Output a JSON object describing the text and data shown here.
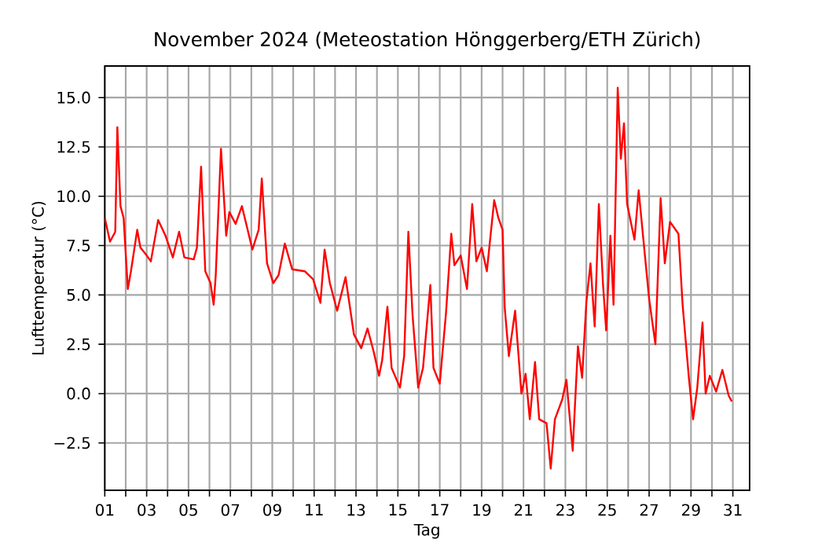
{
  "chart_data": {
    "type": "line",
    "title": "November 2024  (Meteostation Hönggerberg/ETH Zürich)",
    "xlabel": "Tag",
    "ylabel": "Lufttemperatur (°C)",
    "series": [
      {
        "color": "#ff0000",
        "x": [
          1.0,
          1.25,
          1.5,
          1.6,
          1.75,
          1.9,
          2.1,
          2.25,
          2.55,
          2.7,
          3.0,
          3.2,
          3.55,
          3.9,
          4.25,
          4.55,
          4.8,
          5.25,
          5.4,
          5.6,
          5.8,
          6.05,
          6.2,
          6.3,
          6.55,
          6.8,
          6.95,
          7.25,
          7.55,
          8.05,
          8.35,
          8.5,
          8.75,
          9.05,
          9.3,
          9.6,
          9.95,
          10.55,
          10.95,
          11.3,
          11.5,
          11.75,
          12.1,
          12.5,
          12.9,
          13.25,
          13.55,
          13.85,
          14.1,
          14.25,
          14.5,
          14.7,
          15.1,
          15.3,
          15.5,
          15.7,
          15.97,
          16.2,
          16.55,
          16.7,
          17.0,
          17.3,
          17.55,
          17.7,
          18.0,
          18.3,
          18.55,
          18.75,
          19.0,
          19.25,
          19.6,
          19.8,
          20.0,
          20.1,
          20.3,
          20.6,
          20.9,
          21.1,
          21.3,
          21.55,
          21.75,
          22.1,
          22.3,
          22.5,
          22.85,
          23.05,
          23.35,
          23.6,
          23.8,
          24.0,
          24.2,
          24.4,
          24.6,
          24.8,
          24.95,
          25.15,
          25.3,
          25.5,
          25.65,
          25.8,
          25.95,
          26.3,
          26.5,
          26.8,
          27.0,
          27.3,
          27.55,
          27.75,
          28.0,
          28.4,
          28.6,
          28.9,
          29.1,
          29.3,
          29.55,
          29.7,
          29.9,
          30.2,
          30.5,
          30.8,
          30.95
        ],
        "values": [
          8.9,
          7.7,
          8.2,
          13.5,
          9.5,
          8.9,
          5.3,
          6.2,
          8.3,
          7.4,
          7.0,
          6.7,
          8.8,
          8.0,
          6.9,
          8.2,
          6.9,
          6.8,
          7.4,
          11.5,
          6.2,
          5.6,
          4.5,
          6.0,
          12.4,
          8.0,
          9.2,
          8.6,
          9.5,
          7.3,
          8.3,
          10.9,
          6.6,
          5.6,
          6.0,
          7.6,
          6.3,
          6.2,
          5.8,
          4.6,
          7.3,
          5.6,
          4.2,
          5.9,
          3.0,
          2.3,
          3.3,
          2.1,
          0.9,
          1.7,
          4.4,
          1.3,
          0.3,
          1.9,
          8.2,
          4.0,
          0.3,
          1.3,
          5.5,
          1.3,
          0.5,
          4.1,
          8.1,
          6.5,
          7.0,
          5.3,
          9.6,
          6.7,
          7.4,
          6.2,
          9.8,
          8.9,
          8.3,
          4.4,
          1.9,
          4.2,
          0.0,
          1.0,
          -1.3,
          1.6,
          -1.3,
          -1.5,
          -3.8,
          -1.3,
          -0.3,
          0.7,
          -2.9,
          2.4,
          0.8,
          4.6,
          6.6,
          3.4,
          9.6,
          5.5,
          3.2,
          8.0,
          4.5,
          15.5,
          11.9,
          13.7,
          9.6,
          7.8,
          10.3,
          7.0,
          4.8,
          2.5,
          9.9,
          6.6,
          8.7,
          8.1,
          4.5,
          0.8,
          -1.3,
          0.3,
          3.6,
          0.0,
          0.9,
          0.1,
          1.2,
          -0.1,
          -0.4
        ]
      }
    ],
    "xlim": [
      1,
      31.8
    ],
    "xticks": [
      {
        "value": 1,
        "label": "01"
      },
      {
        "value": 2,
        "label": null
      },
      {
        "value": 3,
        "label": "03"
      },
      {
        "value": 4,
        "label": null
      },
      {
        "value": 5,
        "label": "05"
      },
      {
        "value": 6,
        "label": null
      },
      {
        "value": 7,
        "label": "07"
      },
      {
        "value": 8,
        "label": null
      },
      {
        "value": 9,
        "label": "09"
      },
      {
        "value": 10,
        "label": null
      },
      {
        "value": 11,
        "label": "11"
      },
      {
        "value": 12,
        "label": null
      },
      {
        "value": 13,
        "label": "13"
      },
      {
        "value": 14,
        "label": null
      },
      {
        "value": 15,
        "label": "15"
      },
      {
        "value": 16,
        "label": null
      },
      {
        "value": 17,
        "label": "17"
      },
      {
        "value": 18,
        "label": null
      },
      {
        "value": 19,
        "label": "19"
      },
      {
        "value": 20,
        "label": null
      },
      {
        "value": 21,
        "label": "21"
      },
      {
        "value": 22,
        "label": null
      },
      {
        "value": 23,
        "label": "23"
      },
      {
        "value": 24,
        "label": null
      },
      {
        "value": 25,
        "label": "25"
      },
      {
        "value": 26,
        "label": null
      },
      {
        "value": 27,
        "label": "27"
      },
      {
        "value": 28,
        "label": null
      },
      {
        "value": 29,
        "label": "29"
      },
      {
        "value": 30,
        "label": null
      },
      {
        "value": 31,
        "label": "31"
      }
    ],
    "ylim": [
      -4.9,
      16.6
    ],
    "yticks": [
      {
        "value": -2.5,
        "label": "−2.5"
      },
      {
        "value": 0,
        "label": "0.0"
      },
      {
        "value": 2.5,
        "label": "2.5"
      },
      {
        "value": 5,
        "label": "5.0"
      },
      {
        "value": 7.5,
        "label": "7.5"
      },
      {
        "value": 10,
        "label": "10.0"
      },
      {
        "value": 12.5,
        "label": "12.5"
      },
      {
        "value": 15,
        "label": "15.0"
      }
    ],
    "grid": true,
    "line_style": "solid"
  }
}
